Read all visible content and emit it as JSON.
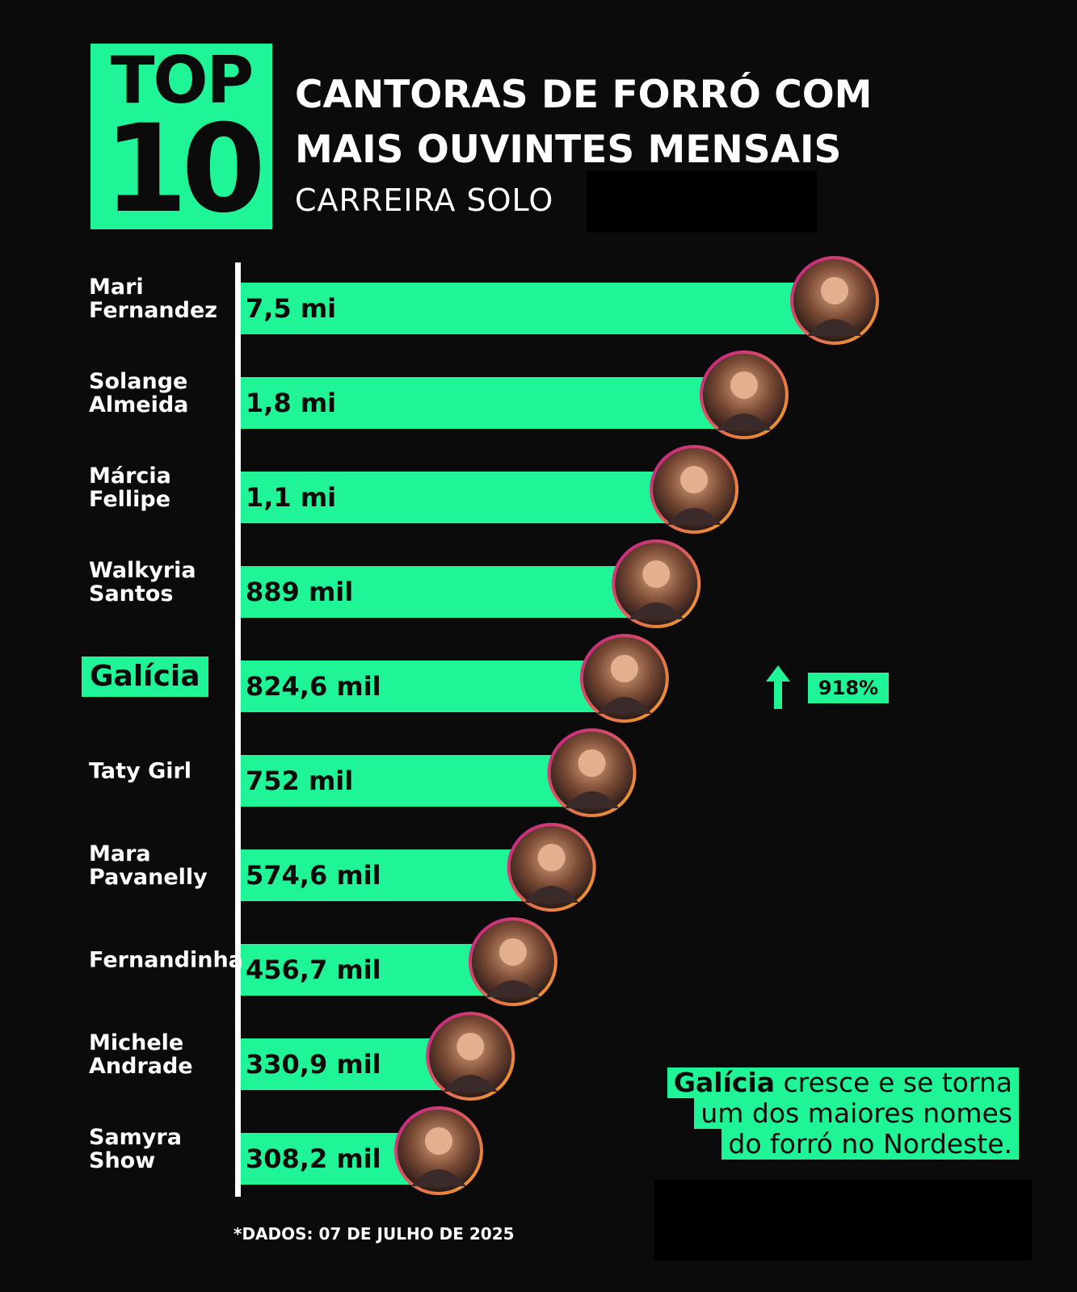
{
  "badge": {
    "top": "TOP",
    "number": "10"
  },
  "title_line1": "CANTORAS DE FORRÓ COM",
  "title_line2": "MAIS OUVINTES MENSAIS",
  "subtitle": "CARREIRA SOLO",
  "footnote": "*DADOS: 07 DE JULHO DE 2025",
  "note": {
    "highlight": "Galícia",
    "line1_rest": " cresce e se torna",
    "line2": "um dos maiores nomes",
    "line3": "do forró no Nordeste."
  },
  "colors": {
    "accent": "#1ff596",
    "background": "#0b0b0b",
    "text": "#ffffff",
    "avatar_ring_start": "#f5a623",
    "avatar_ring_end": "#c2188f"
  },
  "chart_data": {
    "type": "bar",
    "orientation": "horizontal",
    "unit": "monthly listeners",
    "categories": [
      "Mari Fernandez",
      "Solange Almeida",
      "Márcia Fellipe",
      "Walkyria Santos",
      "Galícia",
      "Taty Girl",
      "Mara Pavanelly",
      "Fernandinha",
      "Michele Andrade",
      "Samyra Show"
    ],
    "display_names": [
      "Mari\nFernandez",
      "Solange\nAlmeida",
      "Márcia\nFellipe",
      "Walkyria\nSantos",
      "Galícia",
      "Taty Girl",
      "Mara\nPavanelly",
      "Fernandinha",
      "Michele\nAndrade",
      "Samyra\nShow"
    ],
    "labels": [
      "7,5 mi",
      "1,8 mi",
      "1,1 mi",
      "889 mil",
      "824,6 mil",
      "752 mil",
      "574,6 mil",
      "456,7 mil",
      "330,9 mil",
      "308,2 mil"
    ],
    "values": [
      7500000,
      1800000,
      1100000,
      889000,
      824600,
      752000,
      574600,
      456700,
      330900,
      308200
    ],
    "highlight": "Galícia",
    "annotation": {
      "category": "Galícia",
      "text": "918%",
      "icon": "arrow-up-icon"
    },
    "grid": false,
    "legend": "none"
  }
}
